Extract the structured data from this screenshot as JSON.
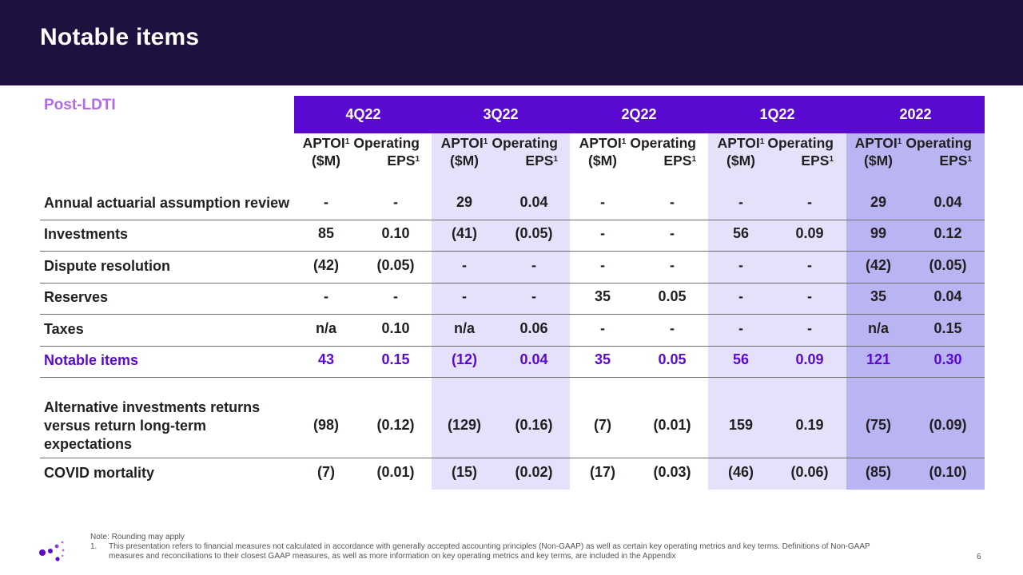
{
  "title": "Notable items",
  "section_label": "Post-LDTI",
  "periods": [
    "4Q22",
    "3Q22",
    "2Q22",
    "1Q22",
    "2022"
  ],
  "column_headers": {
    "aptoi_line1": "APTOI",
    "aptoi_line2": "($M)",
    "eps_line1": "Operating",
    "eps_line2": "EPS",
    "footnote_mark": "1"
  },
  "rows": [
    {
      "label": "Annual actuarial assumption review",
      "values": [
        "-",
        "-",
        "29",
        "0.04",
        "-",
        "-",
        "-",
        "-",
        "29",
        "0.04"
      ]
    },
    {
      "label": "Investments",
      "values": [
        "85",
        "0.10",
        "(41)",
        "(0.05)",
        "-",
        "-",
        "56",
        "0.09",
        "99",
        "0.12"
      ]
    },
    {
      "label": "Dispute resolution",
      "values": [
        "(42)",
        "(0.05)",
        "-",
        "-",
        "-",
        "-",
        "-",
        "-",
        "(42)",
        "(0.05)"
      ]
    },
    {
      "label": "Reserves",
      "values": [
        "-",
        "-",
        "-",
        "-",
        "35",
        "0.05",
        "-",
        "-",
        "35",
        "0.04"
      ]
    },
    {
      "label": "Taxes",
      "values": [
        "n/a",
        "0.10",
        "n/a",
        "0.06",
        "-",
        "-",
        "-",
        "-",
        "n/a",
        "0.15"
      ]
    },
    {
      "label": "Notable items",
      "values": [
        "43",
        "0.15",
        "(12)",
        "0.04",
        "35",
        "0.05",
        "56",
        "0.09",
        "121",
        "0.30"
      ]
    },
    {
      "label_lines": [
        "Alternative investments returns",
        "versus return long-term",
        "expectations"
      ],
      "values": [
        "(98)",
        "(0.12)",
        "(129)",
        "(0.16)",
        "(7)",
        "(0.01)",
        "159",
        "0.19",
        "(75)",
        "(0.09)"
      ]
    },
    {
      "label": "COVID mortality",
      "values": [
        "(7)",
        "(0.01)",
        "(15)",
        "(0.02)",
        "(17)",
        "(0.03)",
        "(46)",
        "(0.06)",
        "(85)",
        "(0.10)"
      ]
    }
  ],
  "notes": {
    "line1": "Note:  Rounding may apply",
    "line2_num": "1.",
    "line2": "This presentation refers to financial measures not calculated in accordance with generally accepted accounting principles (Non-GAAP) as well as certain key operating metrics and key terms.  Definitions of Non-GAAP",
    "line3": "measures and reconciliations to their closest GAAP measures, as well as more information on key operating metrics and key terms, are included in the Appendix"
  },
  "page_number": "6",
  "colors": {
    "header_bg": "#1e1140",
    "accent": "#5a09d0",
    "section_label": "#b36ae8",
    "shade_light": "#e4e2fb",
    "shade_dark": "#b9b4f2"
  }
}
